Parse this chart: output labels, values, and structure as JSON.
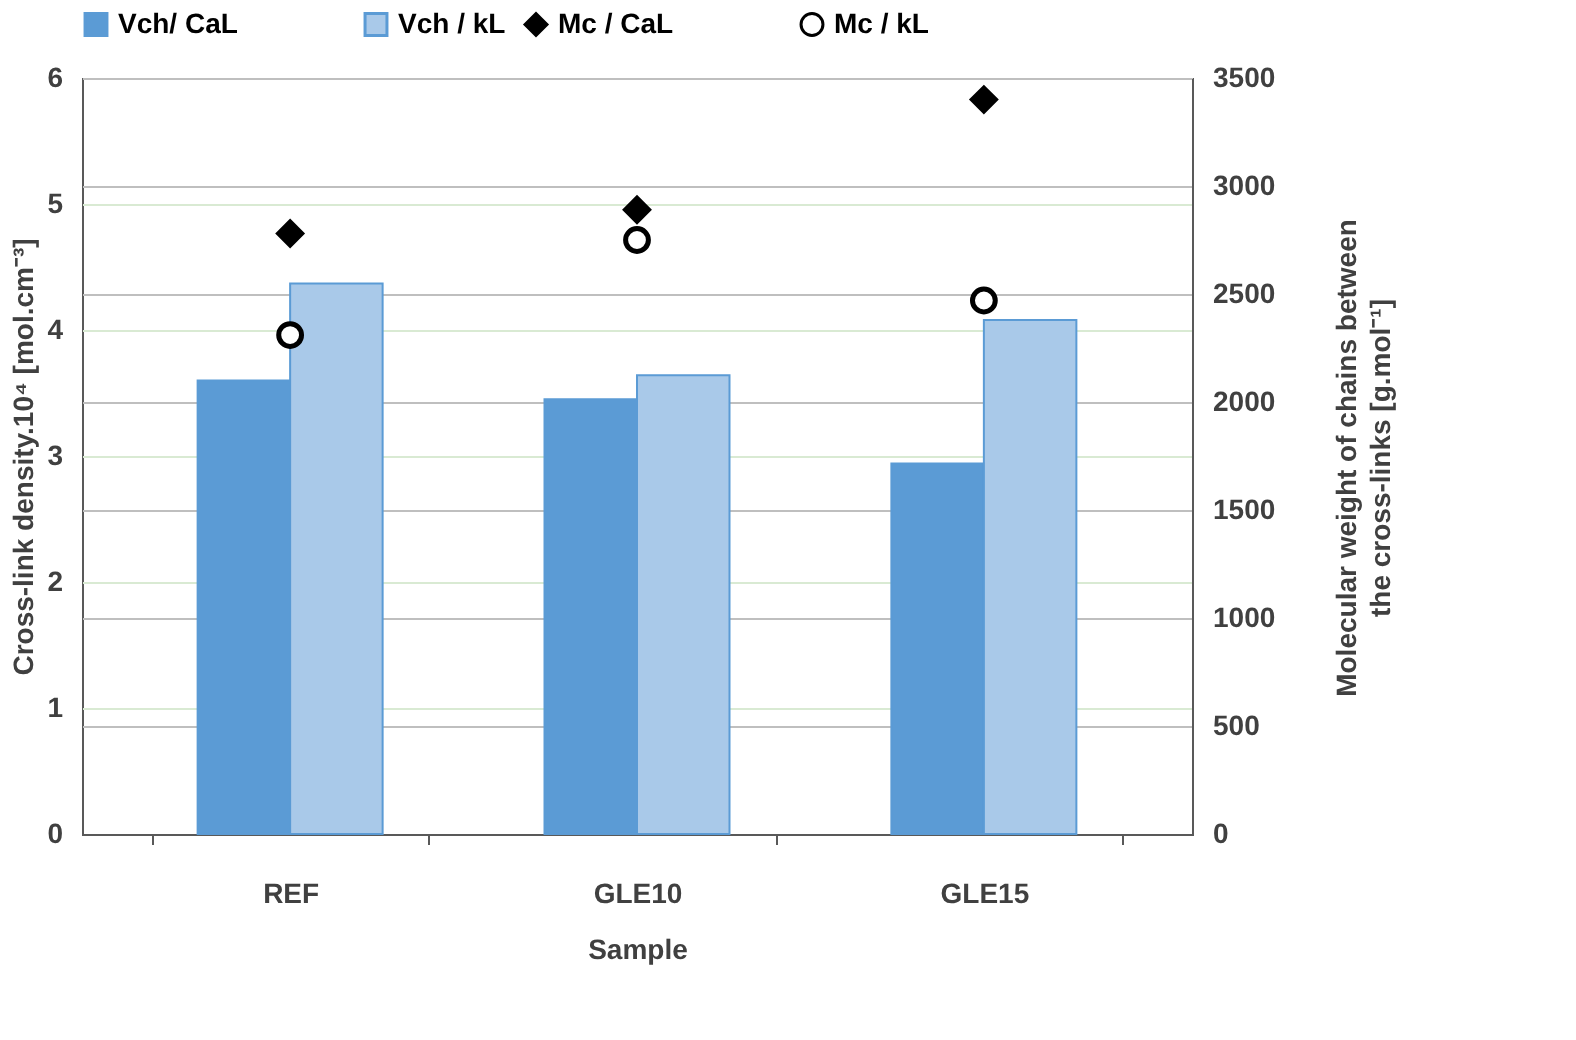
{
  "chart_data": {
    "type": "bar",
    "xlabel": "Sample",
    "ylabel": "Cross-link density.10⁴ [mol.cm⁻³]",
    "y2label": "Molecular weight of chains between the cross-links [g.mol⁻¹]",
    "categories": [
      "REF",
      "GLE10",
      "GLE15"
    ],
    "series": [
      {
        "name": "Vch/ CaL",
        "color": "#5b9bd5",
        "values": [
          3.6,
          3.45,
          2.94
        ]
      },
      {
        "name": "Vch / kL",
        "color": "#a9c9e9",
        "values": [
          4.37,
          3.64,
          4.08
        ]
      },
      {
        "name": "Mc / CaL",
        "type": "scatter",
        "axis": "y2",
        "marker": "diamond",
        "color": "#000000",
        "values": [
          2780,
          2890,
          3400
        ]
      },
      {
        "name": "Mc / kL",
        "type": "scatter",
        "axis": "y2",
        "marker": "circle",
        "color": "#ffffff",
        "values": [
          2310,
          2750,
          2470
        ]
      }
    ],
    "ylim": [
      0,
      6
    ],
    "yticks": [
      0,
      1,
      2,
      3,
      4,
      5,
      6
    ],
    "y2lim": [
      0,
      3500
    ],
    "y2ticks": [
      0,
      500,
      1000,
      1500,
      2000,
      2500,
      3000,
      3500
    ],
    "grid": true,
    "legend": "top"
  }
}
